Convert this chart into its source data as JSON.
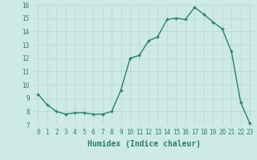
{
  "x": [
    0,
    1,
    2,
    3,
    4,
    5,
    6,
    7,
    8,
    9,
    10,
    11,
    12,
    13,
    14,
    15,
    16,
    17,
    18,
    19,
    20,
    21,
    22,
    23
  ],
  "y": [
    9.3,
    8.5,
    8.0,
    7.8,
    7.9,
    7.9,
    7.8,
    7.8,
    8.0,
    9.6,
    12.0,
    12.2,
    13.3,
    13.6,
    14.9,
    15.0,
    14.9,
    15.8,
    15.3,
    14.7,
    14.2,
    12.5,
    8.7,
    7.1
  ],
  "xlabel": "Humidex (Indice chaleur)",
  "line_color": "#2e7d6e",
  "marker": "+",
  "marker_color": "#2e7d6e",
  "bg_color": "#ceeae7",
  "grid_color": "#b8d4d0",
  "tick_color": "#2e7d6e",
  "label_color": "#2e7d6e",
  "xlim": [
    -0.5,
    23.5
  ],
  "ylim": [
    7,
    16
  ],
  "yticks": [
    7,
    8,
    9,
    10,
    11,
    12,
    13,
    14,
    15,
    16
  ],
  "xticks": [
    0,
    1,
    2,
    3,
    4,
    5,
    6,
    7,
    8,
    9,
    10,
    11,
    12,
    13,
    14,
    15,
    16,
    17,
    18,
    19,
    20,
    21,
    22,
    23
  ],
  "xtick_labels": [
    "0",
    "1",
    "2",
    "3",
    "4",
    "5",
    "6",
    "7",
    "8",
    "9",
    "10",
    "11",
    "12",
    "13",
    "14",
    "15",
    "16",
    "17",
    "18",
    "19",
    "20",
    "21",
    "22",
    "23"
  ],
  "linewidth": 1.0,
  "markersize": 3.5,
  "tick_fontsize": 5.5,
  "xlabel_fontsize": 7.0
}
